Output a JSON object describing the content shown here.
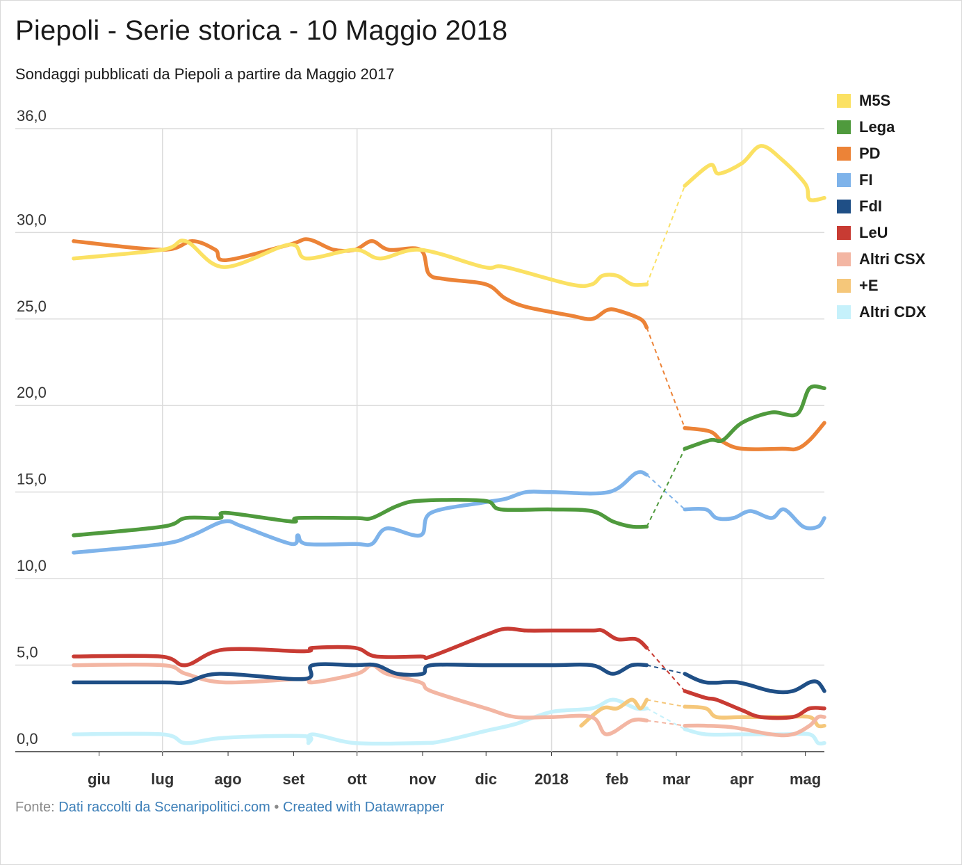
{
  "title": "Piepoli - Serie storica - 10 Maggio 2018",
  "subtitle": "Sondaggi pubblicati da Piepoli a partire da Maggio 2017",
  "source": {
    "prefix": "Fonte:",
    "source_link": "Dati raccolti da Scenaripolitici.com",
    "separator": "•",
    "credit": "Created with Datawrapper"
  },
  "chart_data": {
    "type": "line",
    "title": "Piepoli - Serie storica - 10 Maggio 2018",
    "subtitle": "Sondaggi pubblicati da Piepoli a partire da Maggio 2017",
    "x_unit": "month",
    "xlim": [
      "2017-05-20",
      "2018-05-10"
    ],
    "ylim": [
      0,
      36
    ],
    "y_ticks": [
      "0,0",
      "5,0",
      "10,0",
      "15,0",
      "20,0",
      "25,0",
      "30,0",
      "36,0"
    ],
    "y_tick_values": [
      0,
      5,
      10,
      15,
      20,
      25,
      30,
      36
    ],
    "x_ticks": [
      "giu",
      "lug",
      "ago",
      "set",
      "ott",
      "nov",
      "dic",
      "2018",
      "feb",
      "mar",
      "apr",
      "mag"
    ],
    "x_tick_dates": [
      "2017-06-01",
      "2017-07-01",
      "2017-08-01",
      "2017-09-01",
      "2017-10-01",
      "2017-11-01",
      "2017-12-01",
      "2018-01-01",
      "2018-02-01",
      "2018-03-01",
      "2018-04-01",
      "2018-05-01"
    ],
    "vertical_grid_dates": [
      "2017-07-01",
      "2017-10-01",
      "2018-01-01",
      "2018-04-01"
    ],
    "gap": {
      "from": "2018-02-15",
      "to": "2018-03-05",
      "style": "dashed"
    },
    "grid": true,
    "legend_position": "right",
    "series": [
      {
        "name": "M5S",
        "color": "#fbe163",
        "points": [
          [
            "2017-05-20",
            28.5
          ],
          [
            "2017-07-01",
            29.0
          ],
          [
            "2017-07-12",
            29.5
          ],
          [
            "2017-07-30",
            28.0
          ],
          [
            "2017-08-30",
            29.3
          ],
          [
            "2017-09-07",
            28.5
          ],
          [
            "2017-09-30",
            29.0
          ],
          [
            "2017-10-12",
            28.5
          ],
          [
            "2017-10-31",
            29.0
          ],
          [
            "2017-11-30",
            28.0
          ],
          [
            "2017-12-10",
            28.0
          ],
          [
            "2018-01-10",
            27.0
          ],
          [
            "2018-01-20",
            27.0
          ],
          [
            "2018-01-25",
            27.5
          ],
          [
            "2018-02-01",
            27.5
          ],
          [
            "2018-02-08",
            27.0
          ],
          [
            "2018-02-15",
            27.0
          ],
          [
            "2018-03-05",
            32.7
          ],
          [
            "2018-03-17",
            33.9
          ],
          [
            "2018-03-21",
            33.4
          ],
          [
            "2018-04-01",
            34.0
          ],
          [
            "2018-04-10",
            35.0
          ],
          [
            "2018-04-20",
            34.2
          ],
          [
            "2018-05-01",
            32.8
          ],
          [
            "2018-05-03",
            31.9
          ],
          [
            "2018-05-10",
            32.0
          ]
        ]
      },
      {
        "name": "Lega",
        "color": "#4f9a3d",
        "points": [
          [
            "2017-05-20",
            12.5
          ],
          [
            "2017-07-01",
            13.0
          ],
          [
            "2017-07-12",
            13.5
          ],
          [
            "2017-07-28",
            13.5
          ],
          [
            "2017-07-31",
            13.8
          ],
          [
            "2017-08-31",
            13.3
          ],
          [
            "2017-09-03",
            13.5
          ],
          [
            "2017-09-30",
            13.5
          ],
          [
            "2017-10-08",
            13.5
          ],
          [
            "2017-10-20",
            14.2
          ],
          [
            "2017-10-31",
            14.5
          ],
          [
            "2017-11-30",
            14.5
          ],
          [
            "2017-12-08",
            14.0
          ],
          [
            "2018-01-01",
            14.0
          ],
          [
            "2018-01-20",
            13.9
          ],
          [
            "2018-01-30",
            13.3
          ],
          [
            "2018-02-08",
            13.0
          ],
          [
            "2018-02-15",
            13.0
          ],
          [
            "2018-03-05",
            17.5
          ],
          [
            "2018-03-17",
            18.0
          ],
          [
            "2018-03-23",
            18.0
          ],
          [
            "2018-04-01",
            19.0
          ],
          [
            "2018-04-15",
            19.6
          ],
          [
            "2018-04-27",
            19.5
          ],
          [
            "2018-05-03",
            21.0
          ],
          [
            "2018-05-10",
            21.0
          ]
        ]
      },
      {
        "name": "PD",
        "color": "#ec8337",
        "points": [
          [
            "2017-05-20",
            29.5
          ],
          [
            "2017-07-01",
            29.0
          ],
          [
            "2017-07-15",
            29.5
          ],
          [
            "2017-07-26",
            29.0
          ],
          [
            "2017-07-31",
            28.4
          ],
          [
            "2017-08-30",
            29.3
          ],
          [
            "2017-09-08",
            29.6
          ],
          [
            "2017-09-20",
            29.0
          ],
          [
            "2017-09-30",
            29.0
          ],
          [
            "2017-10-08",
            29.5
          ],
          [
            "2017-10-16",
            29.0
          ],
          [
            "2017-10-31",
            29.0
          ],
          [
            "2017-11-04",
            27.6
          ],
          [
            "2017-11-12",
            27.3
          ],
          [
            "2017-12-01",
            27.0
          ],
          [
            "2017-12-10",
            26.2
          ],
          [
            "2017-12-20",
            25.7
          ],
          [
            "2018-01-10",
            25.2
          ],
          [
            "2018-01-20",
            25.0
          ],
          [
            "2018-01-27",
            25.5
          ],
          [
            "2018-02-01",
            25.5
          ],
          [
            "2018-02-12",
            25.0
          ],
          [
            "2018-02-15",
            24.5
          ],
          [
            "2018-03-05",
            18.7
          ],
          [
            "2018-03-17",
            18.5
          ],
          [
            "2018-03-23",
            17.9
          ],
          [
            "2018-04-01",
            17.5
          ],
          [
            "2018-04-20",
            17.5
          ],
          [
            "2018-04-27",
            17.5
          ],
          [
            "2018-05-03",
            18.0
          ],
          [
            "2018-05-10",
            19.0
          ]
        ]
      },
      {
        "name": "FI",
        "color": "#7eb3ea",
        "points": [
          [
            "2017-05-20",
            11.5
          ],
          [
            "2017-07-01",
            12.0
          ],
          [
            "2017-07-15",
            12.5
          ],
          [
            "2017-07-30",
            13.3
          ],
          [
            "2017-08-08",
            13.0
          ],
          [
            "2017-08-31",
            12.0
          ],
          [
            "2017-09-03",
            12.5
          ],
          [
            "2017-09-07",
            12.0
          ],
          [
            "2017-09-30",
            12.0
          ],
          [
            "2017-10-08",
            12.0
          ],
          [
            "2017-10-15",
            12.9
          ],
          [
            "2017-10-31",
            12.5
          ],
          [
            "2017-11-05",
            13.8
          ],
          [
            "2017-11-30",
            14.4
          ],
          [
            "2017-12-10",
            14.6
          ],
          [
            "2017-12-20",
            15.0
          ],
          [
            "2018-01-01",
            15.0
          ],
          [
            "2018-01-28",
            15.0
          ],
          [
            "2018-02-10",
            16.1
          ],
          [
            "2018-02-15",
            16.0
          ],
          [
            "2018-03-05",
            14.0
          ],
          [
            "2018-03-15",
            14.0
          ],
          [
            "2018-03-20",
            13.5
          ],
          [
            "2018-03-28",
            13.5
          ],
          [
            "2018-04-05",
            13.9
          ],
          [
            "2018-04-15",
            13.5
          ],
          [
            "2018-04-21",
            14.0
          ],
          [
            "2018-04-30",
            13.0
          ],
          [
            "2018-05-07",
            13.0
          ],
          [
            "2018-05-10",
            13.5
          ]
        ]
      },
      {
        "name": "FdI",
        "color": "#1f4f86",
        "points": [
          [
            "2017-05-20",
            4.0
          ],
          [
            "2017-07-01",
            4.0
          ],
          [
            "2017-07-12",
            4.0
          ],
          [
            "2017-07-28",
            4.5
          ],
          [
            "2017-09-06",
            4.2
          ],
          [
            "2017-09-10",
            5.0
          ],
          [
            "2017-09-30",
            5.0
          ],
          [
            "2017-10-10",
            5.0
          ],
          [
            "2017-10-20",
            4.5
          ],
          [
            "2017-11-01",
            4.5
          ],
          [
            "2017-11-05",
            5.0
          ],
          [
            "2017-12-01",
            5.0
          ],
          [
            "2018-01-01",
            5.0
          ],
          [
            "2018-01-20",
            5.0
          ],
          [
            "2018-01-30",
            4.5
          ],
          [
            "2018-02-08",
            5.0
          ],
          [
            "2018-02-15",
            5.0
          ],
          [
            "2018-03-05",
            4.5
          ],
          [
            "2018-03-15",
            4.0
          ],
          [
            "2018-03-30",
            4.0
          ],
          [
            "2018-04-15",
            3.5
          ],
          [
            "2018-04-25",
            3.5
          ],
          [
            "2018-05-03",
            4.0
          ],
          [
            "2018-05-07",
            4.0
          ],
          [
            "2018-05-10",
            3.5
          ]
        ]
      },
      {
        "name": "LeU",
        "color": "#c83b33",
        "points": [
          [
            "2017-05-20",
            5.5
          ],
          [
            "2017-06-30",
            5.5
          ],
          [
            "2017-07-12",
            5.0
          ],
          [
            "2017-07-30",
            5.9
          ],
          [
            "2017-09-06",
            5.8
          ],
          [
            "2017-09-10",
            6.0
          ],
          [
            "2017-09-30",
            6.0
          ],
          [
            "2017-10-10",
            5.5
          ],
          [
            "2017-10-31",
            5.5
          ],
          [
            "2017-11-05",
            5.5
          ],
          [
            "2017-11-30",
            6.7
          ],
          [
            "2017-12-10",
            7.1
          ],
          [
            "2017-12-20",
            7.0
          ],
          [
            "2018-01-01",
            7.0
          ],
          [
            "2018-01-20",
            7.0
          ],
          [
            "2018-01-25",
            7.0
          ],
          [
            "2018-02-01",
            6.5
          ],
          [
            "2018-02-10",
            6.5
          ],
          [
            "2018-02-15",
            6.0
          ],
          [
            "2018-03-05",
            3.5
          ],
          [
            "2018-03-15",
            3.1
          ],
          [
            "2018-03-20",
            3.0
          ],
          [
            "2018-04-01",
            2.4
          ],
          [
            "2018-04-10",
            2.0
          ],
          [
            "2018-04-25",
            2.0
          ],
          [
            "2018-05-03",
            2.5
          ],
          [
            "2018-05-10",
            2.5
          ]
        ]
      },
      {
        "name": "Altri CSX",
        "color": "#f3b6a3",
        "points": [
          [
            "2017-05-20",
            5.0
          ],
          [
            "2017-07-01",
            5.0
          ],
          [
            "2017-07-12",
            4.5
          ],
          [
            "2017-07-30",
            4.0
          ],
          [
            "2017-09-05",
            4.2
          ],
          [
            "2017-09-10",
            4.0
          ],
          [
            "2017-10-01",
            4.5
          ],
          [
            "2017-10-08",
            5.0
          ],
          [
            "2017-10-15",
            4.5
          ],
          [
            "2017-10-31",
            4.0
          ],
          [
            "2017-11-05",
            3.5
          ],
          [
            "2017-12-01",
            2.5
          ],
          [
            "2017-12-15",
            2.0
          ],
          [
            "2018-01-01",
            2.0
          ],
          [
            "2018-01-20",
            2.0
          ],
          [
            "2018-01-27",
            1.0
          ],
          [
            "2018-02-08",
            1.8
          ],
          [
            "2018-02-15",
            1.8
          ],
          [
            "2018-03-05",
            1.5
          ],
          [
            "2018-03-15",
            1.5
          ],
          [
            "2018-03-28",
            1.4
          ],
          [
            "2018-04-15",
            1.0
          ],
          [
            "2018-04-25",
            1.0
          ],
          [
            "2018-05-03",
            1.5
          ],
          [
            "2018-05-07",
            2.0
          ],
          [
            "2018-05-10",
            2.0
          ]
        ]
      },
      {
        "name": "+E",
        "color": "#f5c77a",
        "points": [
          [
            "2018-01-15",
            1.5
          ],
          [
            "2018-01-25",
            2.5
          ],
          [
            "2018-02-01",
            2.5
          ],
          [
            "2018-02-08",
            3.0
          ],
          [
            "2018-02-12",
            2.5
          ],
          [
            "2018-02-15",
            3.0
          ],
          [
            "2018-03-05",
            2.6
          ],
          [
            "2018-03-15",
            2.5
          ],
          [
            "2018-03-20",
            2.0
          ],
          [
            "2018-04-01",
            2.0
          ],
          [
            "2018-04-20",
            2.0
          ],
          [
            "2018-05-03",
            2.0
          ],
          [
            "2018-05-07",
            1.5
          ],
          [
            "2018-05-10",
            1.5
          ]
        ]
      },
      {
        "name": "Altri CDX",
        "color": "#c6f1fb",
        "points": [
          [
            "2017-05-20",
            1.0
          ],
          [
            "2017-07-01",
            1.0
          ],
          [
            "2017-07-12",
            0.5
          ],
          [
            "2017-07-30",
            0.8
          ],
          [
            "2017-09-06",
            0.9
          ],
          [
            "2017-09-08",
            0.5
          ],
          [
            "2017-09-10",
            1.0
          ],
          [
            "2017-09-30",
            0.5
          ],
          [
            "2017-10-31",
            0.5
          ],
          [
            "2017-11-10",
            0.6
          ],
          [
            "2017-12-01",
            1.2
          ],
          [
            "2017-12-15",
            1.6
          ],
          [
            "2018-01-01",
            2.3
          ],
          [
            "2018-01-20",
            2.5
          ],
          [
            "2018-01-30",
            3.0
          ],
          [
            "2018-02-10",
            2.5
          ],
          [
            "2018-02-15",
            2.5
          ],
          [
            "2018-03-05",
            1.3
          ],
          [
            "2018-03-15",
            1.0
          ],
          [
            "2018-04-01",
            1.0
          ],
          [
            "2018-04-20",
            1.0
          ],
          [
            "2018-05-03",
            1.0
          ],
          [
            "2018-05-07",
            0.5
          ],
          [
            "2018-05-10",
            0.5
          ]
        ]
      }
    ]
  }
}
